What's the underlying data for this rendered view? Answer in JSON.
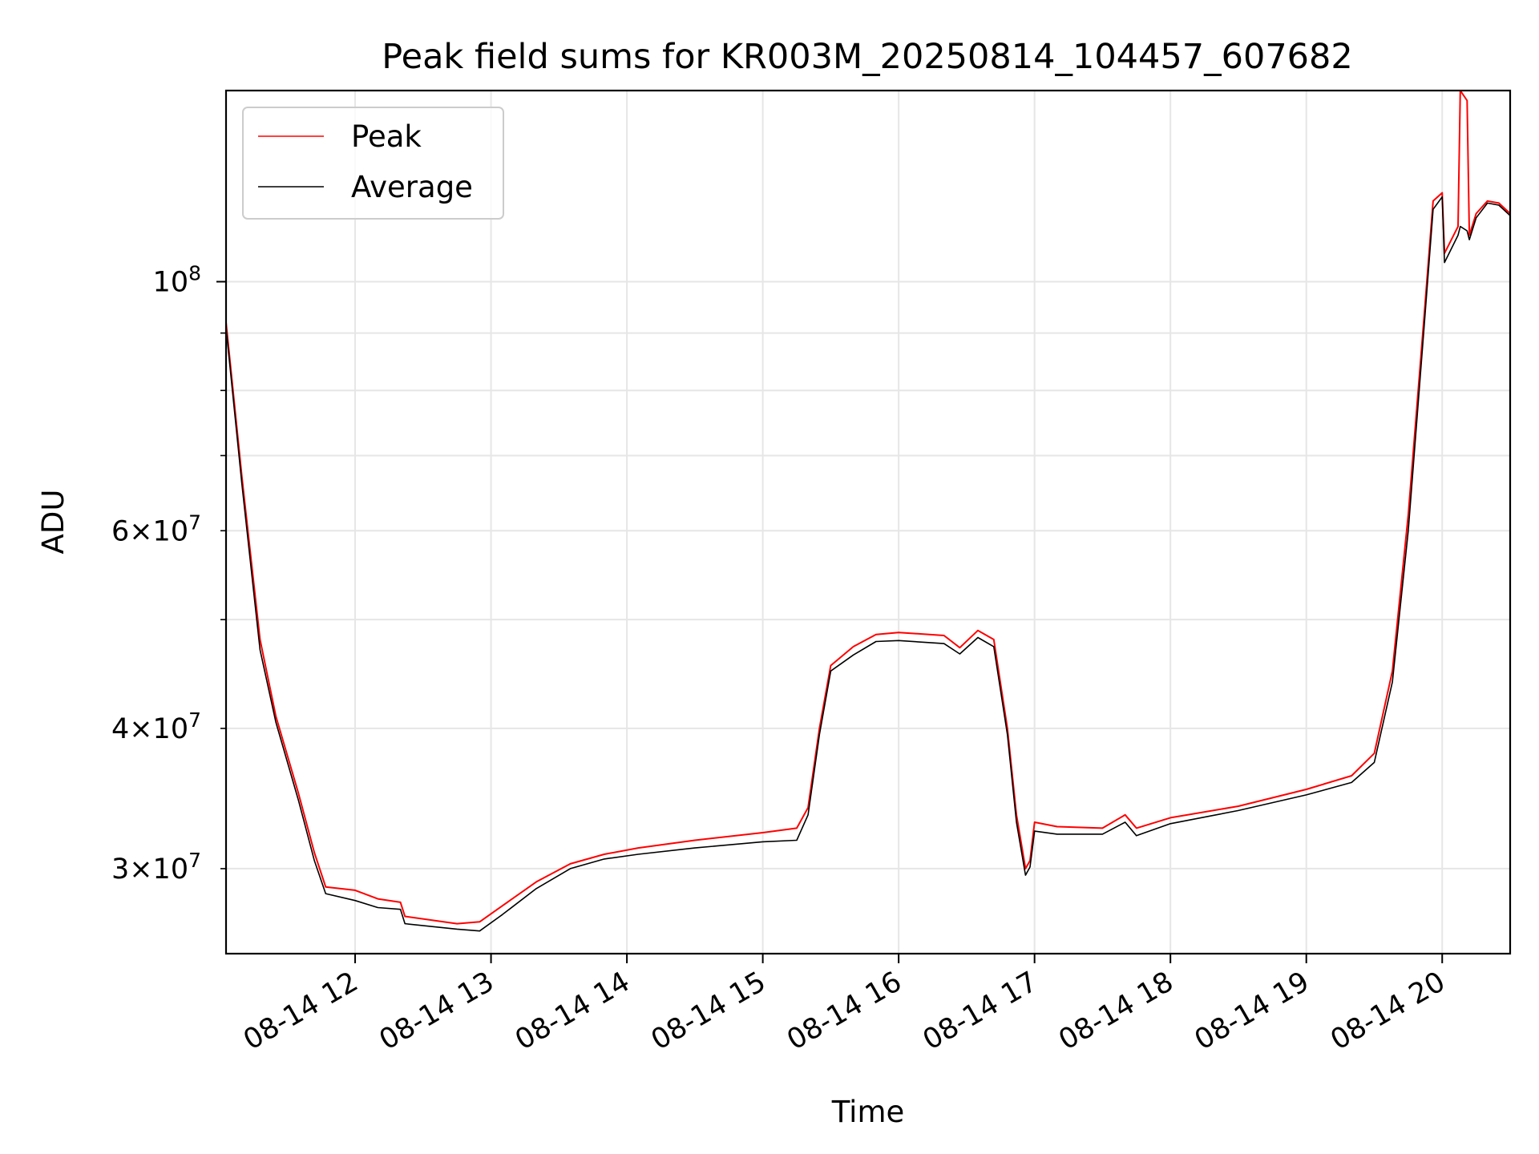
{
  "chart_data": {
    "type": "line",
    "title": "Peak field sums for KR003M_20250814_104457_607682",
    "xlabel": "Time",
    "ylabel": "ADU",
    "yscale": "log",
    "ylim": [
      25200000,
      148000000
    ],
    "xlim": [
      "2025-08-14 11:03",
      "2025-08-14 20:30"
    ],
    "grid": true,
    "legend_position": "top-left",
    "x_ticks": [
      "2025-08-14 12:00",
      "2025-08-14 13:00",
      "2025-08-14 14:00",
      "2025-08-14 15:00",
      "2025-08-14 16:00",
      "2025-08-14 17:00",
      "2025-08-14 18:00",
      "2025-08-14 19:00",
      "2025-08-14 20:00"
    ],
    "x_tick_labels": [
      "08-14 12",
      "08-14 13",
      "08-14 14",
      "08-14 15",
      "08-14 16",
      "08-14 17",
      "08-14 18",
      "08-14 19",
      "08-14 20"
    ],
    "y_ticks_major": [
      {
        "value": 100000000,
        "mantissa": "",
        "base": "10",
        "exp": "8"
      }
    ],
    "y_ticks_minor": [
      {
        "value": 30000000,
        "mantissa": "3",
        "base": "10",
        "exp": "7"
      },
      {
        "value": 40000000,
        "mantissa": "4",
        "base": "10",
        "exp": "7"
      },
      {
        "value": 60000000,
        "mantissa": "6",
        "base": "10",
        "exp": "7"
      }
    ],
    "y_ticks_minor_unlabeled": [
      50000000,
      70000000,
      80000000,
      90000000
    ],
    "series": [
      {
        "name": "Peak",
        "color": "#ff0000",
        "points": [
          [
            "2025-08-14 11:03",
            92000000
          ],
          [
            "2025-08-14 11:10",
            67000000
          ],
          [
            "2025-08-14 11:18",
            48000000
          ],
          [
            "2025-08-14 11:25",
            41000000
          ],
          [
            "2025-08-14 11:35",
            35000000
          ],
          [
            "2025-08-14 11:42",
            31000000
          ],
          [
            "2025-08-14 11:47",
            28900000
          ],
          [
            "2025-08-14 12:00",
            28700000
          ],
          [
            "2025-08-14 12:10",
            28200000
          ],
          [
            "2025-08-14 12:20",
            28000000
          ],
          [
            "2025-08-14 12:22",
            27200000
          ],
          [
            "2025-08-14 12:45",
            26800000
          ],
          [
            "2025-08-14 12:55",
            26900000
          ],
          [
            "2025-08-14 13:05",
            27800000
          ],
          [
            "2025-08-14 13:20",
            29200000
          ],
          [
            "2025-08-14 13:35",
            30300000
          ],
          [
            "2025-08-14 13:50",
            30900000
          ],
          [
            "2025-08-14 14:05",
            31300000
          ],
          [
            "2025-08-14 14:30",
            31800000
          ],
          [
            "2025-08-14 15:00",
            32300000
          ],
          [
            "2025-08-14 15:15",
            32600000
          ],
          [
            "2025-08-14 15:20",
            34000000
          ],
          [
            "2025-08-14 15:25",
            40000000
          ],
          [
            "2025-08-14 15:30",
            45500000
          ],
          [
            "2025-08-14 15:40",
            47300000
          ],
          [
            "2025-08-14 15:50",
            48500000
          ],
          [
            "2025-08-14 16:00",
            48700000
          ],
          [
            "2025-08-14 16:20",
            48400000
          ],
          [
            "2025-08-14 16:27",
            47200000
          ],
          [
            "2025-08-14 16:35",
            48900000
          ],
          [
            "2025-08-14 16:42",
            48000000
          ],
          [
            "2025-08-14 16:48",
            40000000
          ],
          [
            "2025-08-14 16:52",
            33500000
          ],
          [
            "2025-08-14 16:56",
            30000000
          ],
          [
            "2025-08-14 16:58",
            30500000
          ],
          [
            "2025-08-14 17:00",
            33000000
          ],
          [
            "2025-08-14 17:10",
            32700000
          ],
          [
            "2025-08-14 17:30",
            32600000
          ],
          [
            "2025-08-14 17:40",
            33500000
          ],
          [
            "2025-08-14 17:45",
            32600000
          ],
          [
            "2025-08-14 18:00",
            33300000
          ],
          [
            "2025-08-14 18:30",
            34100000
          ],
          [
            "2025-08-14 19:00",
            35300000
          ],
          [
            "2025-08-14 19:20",
            36300000
          ],
          [
            "2025-08-14 19:30",
            38000000
          ],
          [
            "2025-08-14 19:38",
            45000000
          ],
          [
            "2025-08-14 19:45",
            62000000
          ],
          [
            "2025-08-14 19:52",
            93000000
          ],
          [
            "2025-08-14 19:56",
            118000000
          ],
          [
            "2025-08-14 20:00",
            120000000
          ],
          [
            "2025-08-14 20:01",
            106000000
          ],
          [
            "2025-08-14 20:07",
            112000000
          ],
          [
            "2025-08-14 20:08",
            148000000
          ],
          [
            "2025-08-14 20:11",
            145000000
          ],
          [
            "2025-08-14 20:12",
            110000000
          ],
          [
            "2025-08-14 20:15",
            115000000
          ],
          [
            "2025-08-14 20:20",
            118000000
          ],
          [
            "2025-08-14 20:25",
            117500000
          ],
          [
            "2025-08-14 20:30",
            115000000
          ]
        ]
      },
      {
        "name": "Average",
        "color": "#000000",
        "points": [
          [
            "2025-08-14 11:03",
            91000000
          ],
          [
            "2025-08-14 11:10",
            66000000
          ],
          [
            "2025-08-14 11:18",
            47000000
          ],
          [
            "2025-08-14 11:25",
            40500000
          ],
          [
            "2025-08-14 11:35",
            34500000
          ],
          [
            "2025-08-14 11:42",
            30500000
          ],
          [
            "2025-08-14 11:47",
            28500000
          ],
          [
            "2025-08-14 12:00",
            28100000
          ],
          [
            "2025-08-14 12:10",
            27700000
          ],
          [
            "2025-08-14 12:20",
            27600000
          ],
          [
            "2025-08-14 12:22",
            26800000
          ],
          [
            "2025-08-14 12:45",
            26500000
          ],
          [
            "2025-08-14 12:55",
            26400000
          ],
          [
            "2025-08-14 13:05",
            27300000
          ],
          [
            "2025-08-14 13:20",
            28800000
          ],
          [
            "2025-08-14 13:35",
            30000000
          ],
          [
            "2025-08-14 13:50",
            30600000
          ],
          [
            "2025-08-14 14:05",
            30900000
          ],
          [
            "2025-08-14 14:30",
            31300000
          ],
          [
            "2025-08-14 15:00",
            31700000
          ],
          [
            "2025-08-14 15:15",
            31800000
          ],
          [
            "2025-08-14 15:20",
            33500000
          ],
          [
            "2025-08-14 15:25",
            39500000
          ],
          [
            "2025-08-14 15:30",
            45000000
          ],
          [
            "2025-08-14 15:40",
            46500000
          ],
          [
            "2025-08-14 15:50",
            47800000
          ],
          [
            "2025-08-14 16:00",
            47900000
          ],
          [
            "2025-08-14 16:20",
            47600000
          ],
          [
            "2025-08-14 16:27",
            46600000
          ],
          [
            "2025-08-14 16:35",
            48200000
          ],
          [
            "2025-08-14 16:42",
            47300000
          ],
          [
            "2025-08-14 16:48",
            39500000
          ],
          [
            "2025-08-14 16:52",
            33000000
          ],
          [
            "2025-08-14 16:56",
            29600000
          ],
          [
            "2025-08-14 16:58",
            30100000
          ],
          [
            "2025-08-14 17:00",
            32400000
          ],
          [
            "2025-08-14 17:10",
            32200000
          ],
          [
            "2025-08-14 17:30",
            32200000
          ],
          [
            "2025-08-14 17:40",
            33000000
          ],
          [
            "2025-08-14 17:45",
            32100000
          ],
          [
            "2025-08-14 18:00",
            32900000
          ],
          [
            "2025-08-14 18:30",
            33800000
          ],
          [
            "2025-08-14 19:00",
            34900000
          ],
          [
            "2025-08-14 19:20",
            35800000
          ],
          [
            "2025-08-14 19:30",
            37300000
          ],
          [
            "2025-08-14 19:38",
            44000000
          ],
          [
            "2025-08-14 19:45",
            60000000
          ],
          [
            "2025-08-14 19:52",
            91000000
          ],
          [
            "2025-08-14 19:56",
            116000000
          ],
          [
            "2025-08-14 20:00",
            119000000
          ],
          [
            "2025-08-14 20:01",
            104000000
          ],
          [
            "2025-08-14 20:07",
            110000000
          ],
          [
            "2025-08-14 20:08",
            112000000
          ],
          [
            "2025-08-14 20:11",
            111000000
          ],
          [
            "2025-08-14 20:12",
            109000000
          ],
          [
            "2025-08-14 20:15",
            114000000
          ],
          [
            "2025-08-14 20:20",
            117500000
          ],
          [
            "2025-08-14 20:25",
            117000000
          ],
          [
            "2025-08-14 20:30",
            114500000
          ]
        ]
      }
    ]
  }
}
